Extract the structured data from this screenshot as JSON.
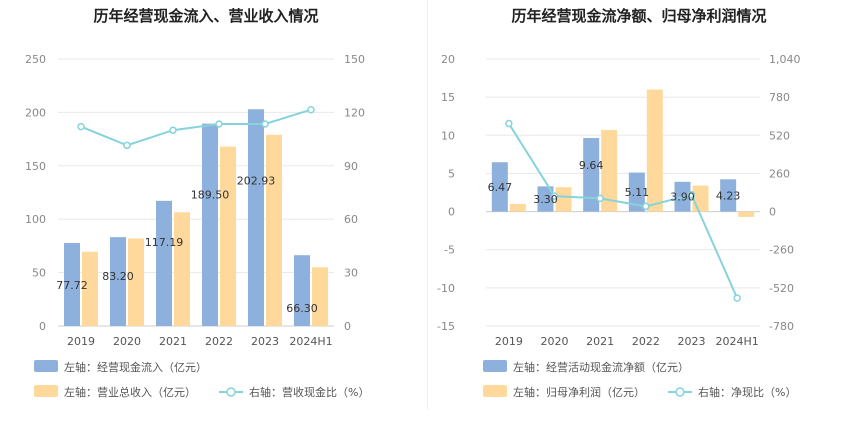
{
  "chart_data": [
    {
      "type": "bar",
      "title": "历年经营现金流入、营业收入情况",
      "categories": [
        "2019",
        "2020",
        "2021",
        "2022",
        "2023",
        "2024H1"
      ],
      "left_axis": {
        "ylim": [
          0,
          250
        ],
        "ticks": [
          "0",
          "50",
          "100",
          "150",
          "200",
          "250"
        ]
      },
      "right_axis": {
        "ylim": [
          0,
          150
        ],
        "ticks": [
          "0",
          "30",
          "60",
          "90",
          "120",
          "150"
        ]
      },
      "series": [
        {
          "name": "左轴：经营现金流入（亿元）",
          "kind": "bar",
          "axis": "left",
          "color": "#8eb0dc",
          "values": [
            77.72,
            83.2,
            117.19,
            189.5,
            202.93,
            66.3
          ],
          "labels": [
            "77.72",
            "83.20",
            "117.19",
            "189.50",
            "202.93",
            "66.30"
          ]
        },
        {
          "name": "左轴：营业总收入（亿元）",
          "kind": "bar",
          "axis": "left",
          "color": "#ffd99b",
          "values": [
            69.5,
            82.0,
            106.5,
            168.0,
            179.0,
            55.0
          ]
        },
        {
          "name": "右轴：营收现金比（%）",
          "kind": "line",
          "axis": "right",
          "color": "#86d3dc",
          "values": [
            112,
            101.5,
            110,
            113.5,
            113.5,
            121.5
          ]
        }
      ],
      "legend": "bottom",
      "grid": true
    },
    {
      "type": "bar",
      "title": "历年经营现金流净额、归母净利润情况",
      "categories": [
        "2019",
        "2020",
        "2021",
        "2022",
        "2023",
        "2024H1"
      ],
      "left_axis": {
        "ylim": [
          -15,
          20
        ],
        "ticks": [
          "-15",
          "-10",
          "-5",
          "0",
          "5",
          "10",
          "15",
          "20"
        ]
      },
      "right_axis": {
        "ylim": [
          -780,
          1040
        ],
        "ticks": [
          "-780",
          "-520",
          "-260",
          "0",
          "260",
          "520",
          "780",
          "1,040"
        ]
      },
      "series": [
        {
          "name": "左轴：经营活动现金流净额（亿元）",
          "kind": "bar",
          "axis": "left",
          "color": "#8eb0dc",
          "values": [
            6.47,
            3.3,
            9.64,
            5.11,
            3.9,
            4.23
          ],
          "labels": [
            "6.47",
            "3.30",
            "9.64",
            "5.11",
            "3.90",
            "4.23"
          ]
        },
        {
          "name": "左轴：归母净利润（亿元）",
          "kind": "bar",
          "axis": "left",
          "color": "#ffd99b",
          "values": [
            1.0,
            3.2,
            10.7,
            16.0,
            3.4,
            -0.7
          ]
        },
        {
          "name": "右轴：净现比（%）",
          "kind": "line",
          "axis": "right",
          "color": "#86d3dc",
          "values": [
            600,
            105,
            90,
            35,
            115,
            -590
          ]
        }
      ],
      "legend": "bottom",
      "grid": true
    }
  ]
}
